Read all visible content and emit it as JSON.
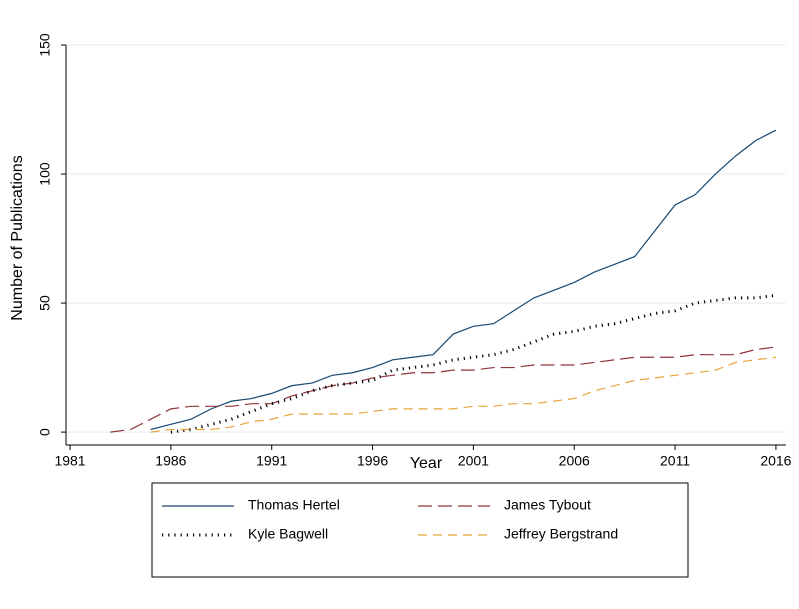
{
  "chart_data": {
    "type": "line",
    "xlabel": "Year",
    "ylabel": "Number of Publications",
    "x": [
      1983,
      1984,
      1985,
      1986,
      1987,
      1988,
      1989,
      1990,
      1991,
      1992,
      1993,
      1994,
      1995,
      1996,
      1997,
      1998,
      1999,
      2000,
      2001,
      2002,
      2003,
      2004,
      2005,
      2006,
      2007,
      2008,
      2009,
      2010,
      2011,
      2012,
      2013,
      2014,
      2015,
      2016
    ],
    "series": [
      {
        "name": "Thomas Hertel",
        "color": "#1a476f",
        "values": [
          null,
          null,
          1,
          3,
          5,
          9,
          12,
          13,
          15,
          18,
          19,
          22,
          23,
          25,
          28,
          29,
          30,
          38,
          41,
          42,
          47,
          52,
          55,
          58,
          62,
          65,
          68,
          78,
          88,
          92,
          100,
          107,
          113,
          117
        ]
      },
      {
        "name": "James Tybout",
        "color": "#90353b",
        "values": [
          0,
          1,
          5,
          9,
          10,
          10,
          10,
          11,
          11,
          14,
          16,
          18,
          19,
          21,
          22,
          23,
          23,
          24,
          24,
          25,
          25,
          26,
          26,
          26,
          27,
          28,
          29,
          29,
          29,
          30,
          30,
          30,
          32,
          33
        ]
      },
      {
        "name": "Kyle Bagwell",
        "color": "#000000",
        "values": [
          null,
          null,
          null,
          0,
          1,
          3,
          5,
          8,
          11,
          13,
          16,
          18,
          19,
          20,
          24,
          25,
          26,
          28,
          29,
          30,
          32,
          35,
          38,
          39,
          41,
          42,
          44,
          46,
          47,
          50,
          51,
          52,
          52,
          53
        ]
      },
      {
        "name": "Jeffrey Bergstrand",
        "color": "#e8a33a",
        "values": [
          null,
          null,
          0,
          1,
          1,
          1,
          2,
          4,
          5,
          7,
          7,
          7,
          7,
          8,
          9,
          9,
          9,
          9,
          10,
          10,
          11,
          11,
          12,
          13,
          16,
          18,
          20,
          21,
          22,
          23,
          24,
          27,
          28,
          29
        ]
      }
    ],
    "xlim": [
      1980.8,
      2016.5
    ],
    "xticks": [
      1981,
      1986,
      1991,
      1996,
      2001,
      2006,
      2011,
      2016
    ],
    "ylim": [
      -5,
      150
    ],
    "yticks": [
      0,
      50,
      100,
      150
    ],
    "grid": true
  }
}
